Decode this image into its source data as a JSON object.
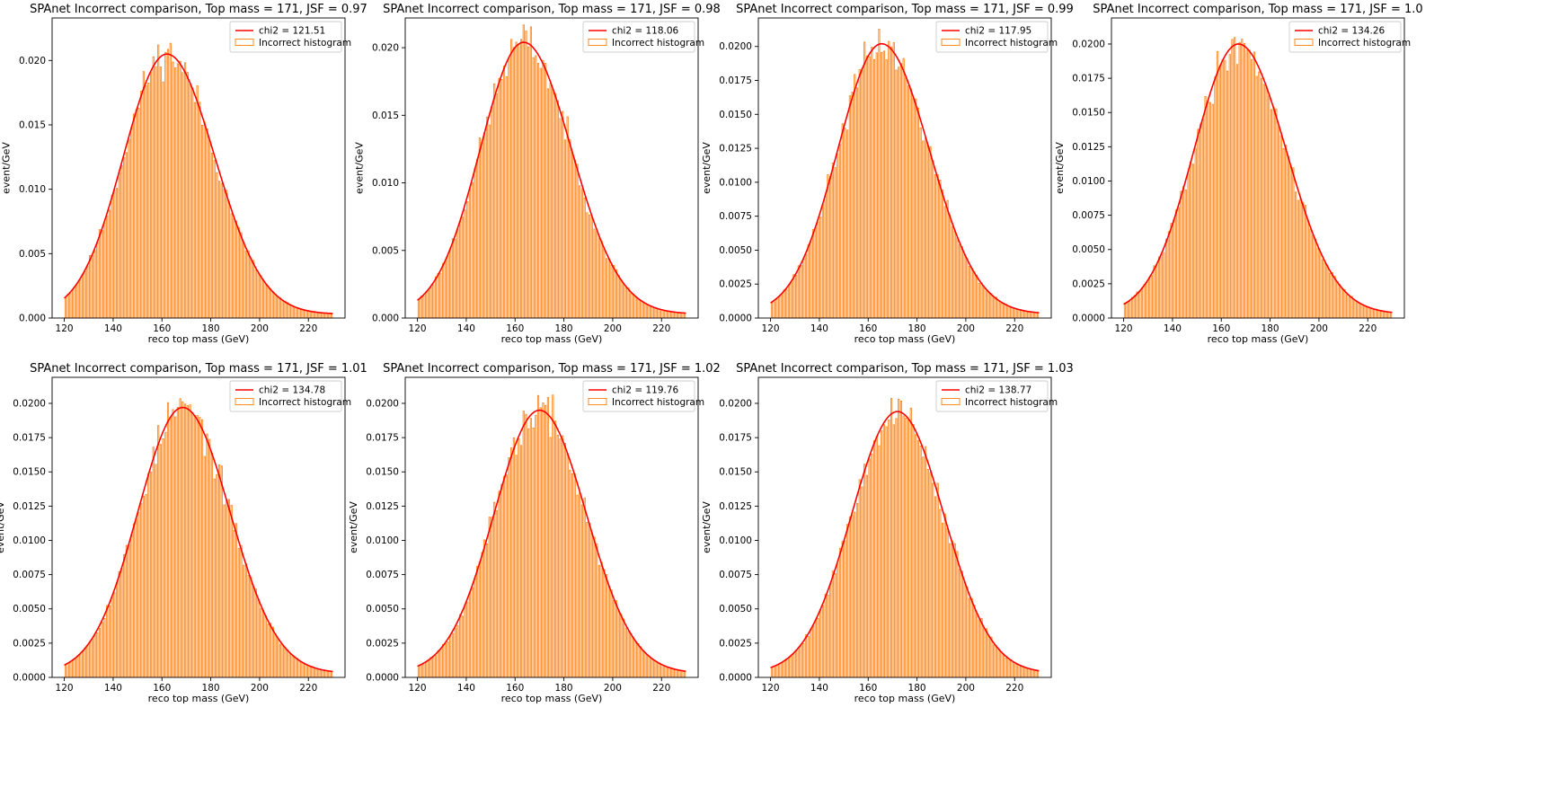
{
  "figure": {
    "background": "#ffffff"
  },
  "colors": {
    "fit_line": "#ff0000",
    "histogram_edge": "#ff7f0e",
    "axes": "#000000"
  },
  "chart_data": [
    {
      "type": "bar",
      "subtype": "histogram-step-with-fit",
      "title": "SPAnet Incorrect comparison, Top mass = 171, JSF = 0.97",
      "xlabel": "reco top mass (GeV)",
      "ylabel": "event/GeV",
      "xlim": [
        115,
        235
      ],
      "ylim": [
        0,
        0.0233
      ],
      "xticks": [
        120,
        140,
        160,
        180,
        200,
        220
      ],
      "xtick_labels": [
        "120",
        "140",
        "160",
        "180",
        "200",
        "220"
      ],
      "yticks": [
        0,
        0.005,
        0.01,
        0.015,
        0.02
      ],
      "ytick_labels": [
        "0.000",
        "0.005",
        "0.010",
        "0.015",
        "0.020"
      ],
      "bins": {
        "start": 120,
        "end": 230,
        "count": 110
      },
      "fit": {
        "peak": 0.0205,
        "mean": 162.0,
        "sigma_left": 17.8,
        "sigma_right": 19.6,
        "floor": 0.0003
      },
      "noise_seed": 11,
      "legend": {
        "position": "upper right",
        "entries": [
          {
            "label": "chi2 = 121.51",
            "kind": "line"
          },
          {
            "label": "Incorrect histogram",
            "kind": "patch"
          }
        ]
      },
      "grid": false
    },
    {
      "type": "bar",
      "subtype": "histogram-step-with-fit",
      "title": "SPAnet Incorrect comparison, Top mass = 171, JSF = 0.98",
      "xlabel": "reco top mass (GeV)",
      "ylabel": "event/GeV",
      "xlim": [
        115,
        235
      ],
      "ylim": [
        0,
        0.0222
      ],
      "xticks": [
        120,
        140,
        160,
        180,
        200,
        220
      ],
      "xtick_labels": [
        "120",
        "140",
        "160",
        "180",
        "200",
        "220"
      ],
      "yticks": [
        0,
        0.005,
        0.01,
        0.015,
        0.02
      ],
      "ytick_labels": [
        "0.000",
        "0.005",
        "0.010",
        "0.015",
        "0.020"
      ],
      "bins": {
        "start": 120,
        "end": 230,
        "count": 110
      },
      "fit": {
        "peak": 0.0204,
        "mean": 163.5,
        "sigma_left": 17.8,
        "sigma_right": 19.6,
        "floor": 0.0003
      },
      "noise_seed": 23,
      "legend": {
        "position": "upper right",
        "entries": [
          {
            "label": "chi2 = 118.06",
            "kind": "line"
          },
          {
            "label": "Incorrect histogram",
            "kind": "patch"
          }
        ]
      },
      "grid": false
    },
    {
      "type": "bar",
      "subtype": "histogram-step-with-fit",
      "title": "SPAnet Incorrect comparison, Top mass = 171, JSF = 0.99",
      "xlabel": "reco top mass (GeV)",
      "ylabel": "event/GeV",
      "xlim": [
        115,
        235
      ],
      "ylim": [
        0,
        0.0221
      ],
      "xticks": [
        120,
        140,
        160,
        180,
        200,
        220
      ],
      "xtick_labels": [
        "120",
        "140",
        "160",
        "180",
        "200",
        "220"
      ],
      "yticks": [
        0,
        0.0025,
        0.005,
        0.0075,
        0.01,
        0.0125,
        0.015,
        0.0175,
        0.02
      ],
      "ytick_labels": [
        "0.0000",
        "0.0025",
        "0.0050",
        "0.0075",
        "0.0100",
        "0.0125",
        "0.0150",
        "0.0175",
        "0.0200"
      ],
      "bins": {
        "start": 120,
        "end": 230,
        "count": 110
      },
      "fit": {
        "peak": 0.0202,
        "mean": 165.5,
        "sigma_left": 18.0,
        "sigma_right": 19.6,
        "floor": 0.0003
      },
      "noise_seed": 37,
      "legend": {
        "position": "upper right",
        "entries": [
          {
            "label": "chi2 = 117.95",
            "kind": "line"
          },
          {
            "label": "Incorrect histogram",
            "kind": "patch"
          }
        ]
      },
      "grid": false
    },
    {
      "type": "bar",
      "subtype": "histogram-step-with-fit",
      "title": "SPAnet Incorrect comparison, Top mass = 171, JSF = 1.0",
      "xlabel": "reco top mass (GeV)",
      "ylabel": "event/GeV",
      "xlim": [
        115,
        235
      ],
      "ylim": [
        0,
        0.0219
      ],
      "xticks": [
        120,
        140,
        160,
        180,
        200,
        220
      ],
      "xtick_labels": [
        "120",
        "140",
        "160",
        "180",
        "200",
        "220"
      ],
      "yticks": [
        0,
        0.0025,
        0.005,
        0.0075,
        0.01,
        0.0125,
        0.015,
        0.0175,
        0.02
      ],
      "ytick_labels": [
        "0.0000",
        "0.0025",
        "0.0050",
        "0.0075",
        "0.0100",
        "0.0125",
        "0.0150",
        "0.0175",
        "0.0200"
      ],
      "bins": {
        "start": 120,
        "end": 230,
        "count": 110
      },
      "fit": {
        "peak": 0.02,
        "mean": 167.0,
        "sigma_left": 18.2,
        "sigma_right": 19.6,
        "floor": 0.0003
      },
      "noise_seed": 41,
      "legend": {
        "position": "upper right",
        "entries": [
          {
            "label": "chi2 = 134.26",
            "kind": "line"
          },
          {
            "label": "Incorrect histogram",
            "kind": "patch"
          }
        ]
      },
      "grid": false
    },
    {
      "type": "bar",
      "subtype": "histogram-step-with-fit",
      "title": "SPAnet Incorrect comparison, Top mass = 171, JSF = 1.01",
      "xlabel": "reco top mass (GeV)",
      "ylabel": "event/GeV",
      "xlim": [
        115,
        235
      ],
      "ylim": [
        0,
        0.0219
      ],
      "xticks": [
        120,
        140,
        160,
        180,
        200,
        220
      ],
      "xtick_labels": [
        "120",
        "140",
        "160",
        "180",
        "200",
        "220"
      ],
      "yticks": [
        0,
        0.0025,
        0.005,
        0.0075,
        0.01,
        0.0125,
        0.015,
        0.0175,
        0.02
      ],
      "ytick_labels": [
        "0.0000",
        "0.0025",
        "0.0050",
        "0.0075",
        "0.0100",
        "0.0125",
        "0.0150",
        "0.0175",
        "0.0200"
      ],
      "bins": {
        "start": 120,
        "end": 230,
        "count": 110
      },
      "fit": {
        "peak": 0.0197,
        "mean": 168.5,
        "sigma_left": 18.4,
        "sigma_right": 19.4,
        "floor": 0.0003
      },
      "noise_seed": 53,
      "legend": {
        "position": "upper right",
        "entries": [
          {
            "label": "chi2 = 134.78",
            "kind": "line"
          },
          {
            "label": "Incorrect histogram",
            "kind": "patch"
          }
        ]
      },
      "grid": false
    },
    {
      "type": "bar",
      "subtype": "histogram-step-with-fit",
      "title": "SPAnet Incorrect comparison, Top mass = 171, JSF = 1.02",
      "xlabel": "reco top mass (GeV)",
      "ylabel": "event/GeV",
      "xlim": [
        115,
        235
      ],
      "ylim": [
        0,
        0.0219
      ],
      "xticks": [
        120,
        140,
        160,
        180,
        200,
        220
      ],
      "xtick_labels": [
        "120",
        "140",
        "160",
        "180",
        "200",
        "220"
      ],
      "yticks": [
        0,
        0.0025,
        0.005,
        0.0075,
        0.01,
        0.0125,
        0.015,
        0.0175,
        0.02
      ],
      "ytick_labels": [
        "0.0000",
        "0.0025",
        "0.0050",
        "0.0075",
        "0.0100",
        "0.0125",
        "0.0150",
        "0.0175",
        "0.0200"
      ],
      "bins": {
        "start": 120,
        "end": 230,
        "count": 110
      },
      "fit": {
        "peak": 0.0195,
        "mean": 170.0,
        "sigma_left": 18.6,
        "sigma_right": 19.2,
        "floor": 0.0003
      },
      "noise_seed": 67,
      "legend": {
        "position": "upper right",
        "entries": [
          {
            "label": "chi2 = 119.76",
            "kind": "line"
          },
          {
            "label": "Incorrect histogram",
            "kind": "patch"
          }
        ]
      },
      "grid": false
    },
    {
      "type": "bar",
      "subtype": "histogram-step-with-fit",
      "title": "SPAnet Incorrect comparison, Top mass = 171, JSF = 1.03",
      "xlabel": "reco top mass (GeV)",
      "ylabel": "event/GeV",
      "xlim": [
        115,
        235
      ],
      "ylim": [
        0,
        0.0219
      ],
      "xticks": [
        120,
        140,
        160,
        180,
        200,
        220
      ],
      "xtick_labels": [
        "120",
        "140",
        "160",
        "180",
        "200",
        "220"
      ],
      "yticks": [
        0,
        0.0025,
        0.005,
        0.0075,
        0.01,
        0.0125,
        0.015,
        0.0175,
        0.02
      ],
      "ytick_labels": [
        "0.0000",
        "0.0025",
        "0.0050",
        "0.0075",
        "0.0100",
        "0.0125",
        "0.0150",
        "0.0175",
        "0.0200"
      ],
      "bins": {
        "start": 120,
        "end": 230,
        "count": 110
      },
      "fit": {
        "peak": 0.0194,
        "mean": 172.0,
        "sigma_left": 18.8,
        "sigma_right": 19.0,
        "floor": 0.0003
      },
      "noise_seed": 79,
      "legend": {
        "position": "upper right",
        "entries": [
          {
            "label": "chi2 = 138.77",
            "kind": "line"
          },
          {
            "label": "Incorrect histogram",
            "kind": "patch"
          }
        ]
      },
      "grid": false
    }
  ]
}
